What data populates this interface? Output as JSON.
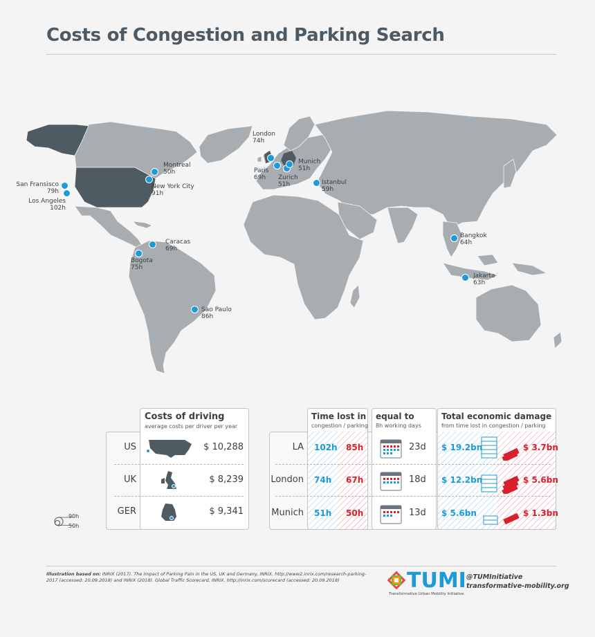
{
  "title": "Costs of Congestion and Parking Search",
  "map": {
    "cities": [
      {
        "name": "San Fransisco",
        "hours": "79h"
      },
      {
        "name": "Los Angeles",
        "hours": "102h"
      },
      {
        "name": "Montreal",
        "hours": "50h"
      },
      {
        "name": "New York City",
        "hours": "91h"
      },
      {
        "name": "Caracas",
        "hours": "69h"
      },
      {
        "name": "Bogota",
        "hours": "75h"
      },
      {
        "name": "Sao Paulo",
        "hours": "86h"
      },
      {
        "name": "London",
        "hours": "74h"
      },
      {
        "name": "Paris",
        "hours": "69h"
      },
      {
        "name": "Zurich",
        "hours": "51h"
      },
      {
        "name": "Munich",
        "hours": "51h"
      },
      {
        "name": "Istanbul",
        "hours": "59h"
      },
      {
        "name": "Bangkok",
        "hours": "64h"
      },
      {
        "name": "Jakarta",
        "hours": "63h"
      }
    ]
  },
  "costs": {
    "heading": "Costs of driving",
    "subheading": "average costs per driver per year",
    "rows": [
      {
        "country": "US",
        "value": "$ 10,288"
      },
      {
        "country": "UK",
        "value": "$ 8,239"
      },
      {
        "country": "GER",
        "value": "$ 9,341"
      }
    ]
  },
  "time": {
    "col1_heading": "Time lost in",
    "col1_sub": "congestion / parking",
    "col2_heading": "equal to",
    "col2_sub": "8h working days",
    "col3_heading": "Total economic damage",
    "col3_sub": "from time lost in congestion / parking",
    "rows": [
      {
        "city": "LA",
        "congestion": "102h",
        "parking": "85h",
        "days": "23d",
        "cong_damage": "$ 19.2bn",
        "park_damage": "$ 3.7bn"
      },
      {
        "city": "London",
        "congestion": "74h",
        "parking": "67h",
        "days": "18d",
        "cong_damage": "$ 12.2bn",
        "park_damage": "$ 5.6bn"
      },
      {
        "city": "Munich",
        "congestion": "51h",
        "parking": "50h",
        "days": "13d",
        "cong_damage": "$ 5.6bn",
        "park_damage": "$ 1.3bn"
      }
    ]
  },
  "legend": {
    "top": "90h",
    "bottom": "50h"
  },
  "footer": {
    "credits_bold": "Illustration based on:",
    "credits_text": "INRIX (2017). The Impact of Parking Pain in the US, UK and Germany, INRIX. http://www2.inrix.com/research-parking-2017 (accessed: 20.09.2018) and INRIX (2018). Global Traffic Scorecard, INRIX. http://inrix.com/scorecard (accessed: 20.09.2018)",
    "logo_word": "TUMI",
    "logo_sub": "Transformative Urban Mobility Initiative",
    "handle": "@TUMInitiative",
    "website": "transformative-mobility.org"
  },
  "colors": {
    "accent": "#1e9ad6",
    "red": "#d8202c",
    "land": "#a8adb1",
    "highlight": "#4f5b63"
  }
}
